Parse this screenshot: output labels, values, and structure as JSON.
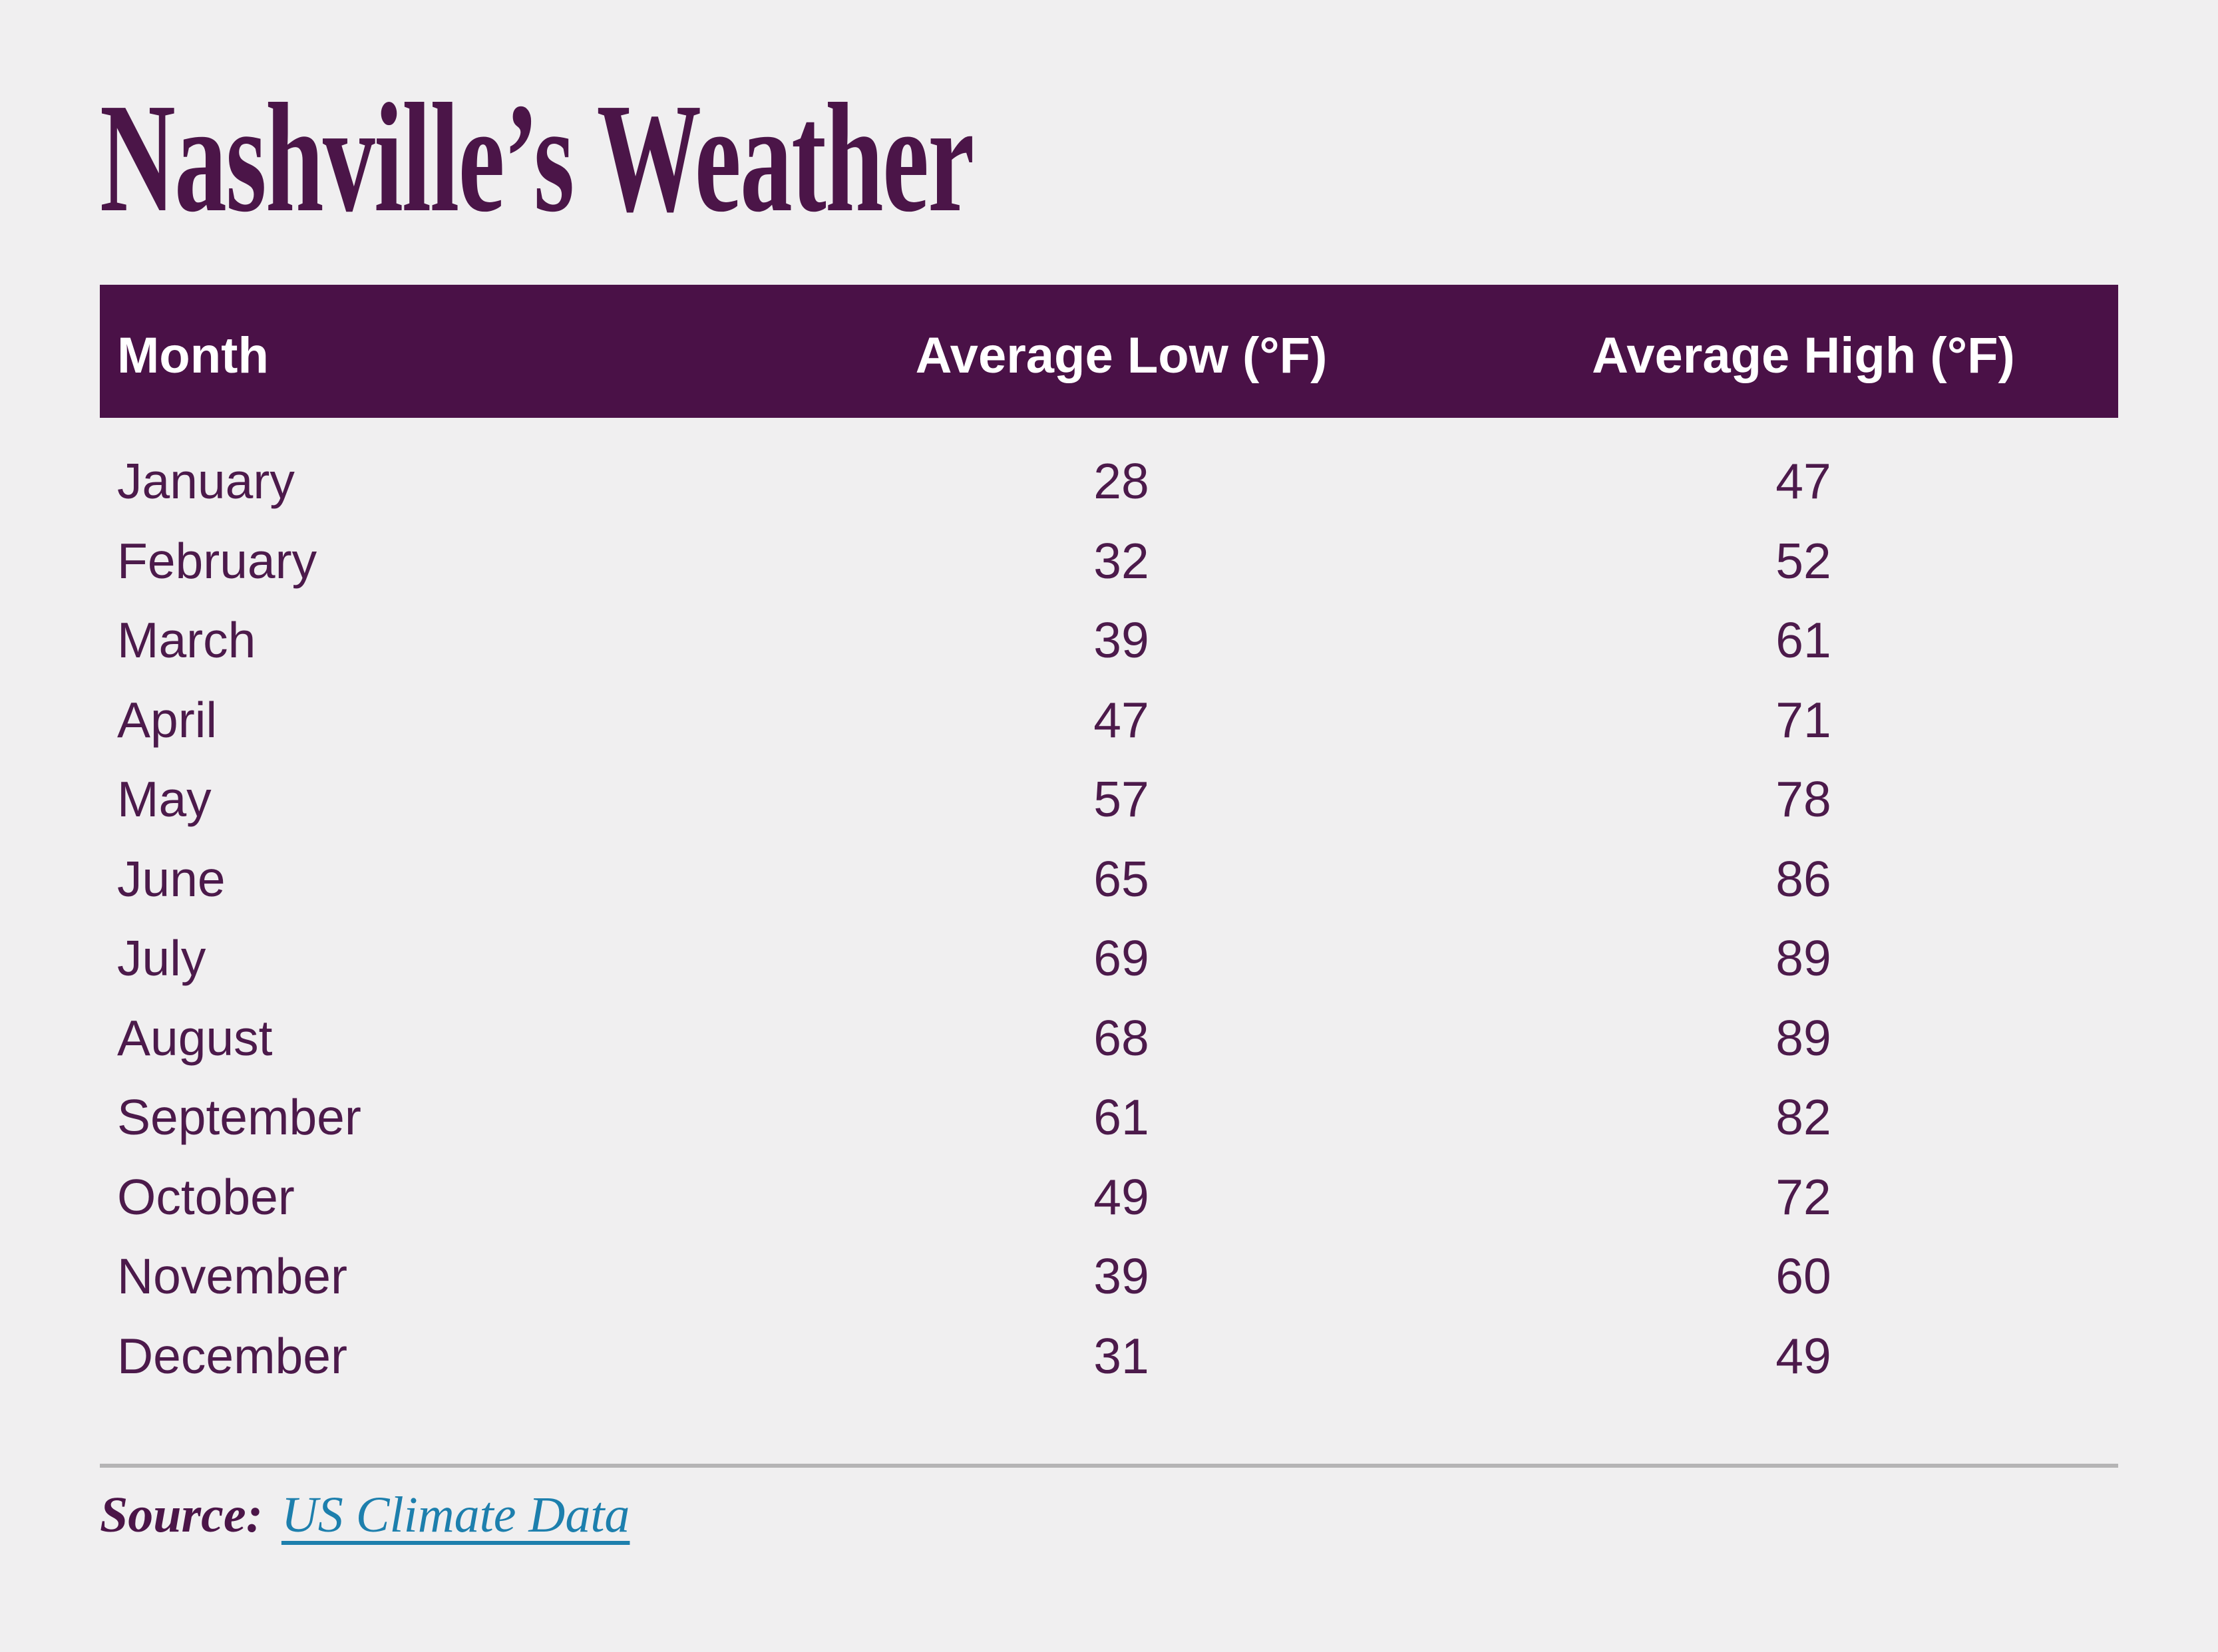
{
  "title": "Nashville’s Weather",
  "table": {
    "columns": [
      "Month",
      "Average Low (°F)",
      "Average High (°F)"
    ],
    "rows": [
      {
        "month": "January",
        "low": "28",
        "high": "47"
      },
      {
        "month": "February",
        "low": "32",
        "high": "52"
      },
      {
        "month": "March",
        "low": "39",
        "high": "61"
      },
      {
        "month": "April",
        "low": "47",
        "high": "71"
      },
      {
        "month": "May",
        "low": "57",
        "high": "78"
      },
      {
        "month": "June",
        "low": "65",
        "high": "86"
      },
      {
        "month": "July",
        "low": "69",
        "high": "89"
      },
      {
        "month": "August",
        "low": "68",
        "high": "89"
      },
      {
        "month": "September",
        "low": "61",
        "high": "82"
      },
      {
        "month": "October",
        "low": "49",
        "high": "72"
      },
      {
        "month": "November",
        "low": "39",
        "high": "60"
      },
      {
        "month": "December",
        "low": "31",
        "high": "49"
      }
    ]
  },
  "source": {
    "label": "Source:",
    "link_text": "US Climate Data"
  },
  "colors": {
    "background": "#f0eff0",
    "accent_plum": "#4a1147",
    "text_plum": "#4b1548",
    "header_text": "#ffffff",
    "link_teal": "#1d7fad",
    "divider_gray": "#b5b4b5"
  },
  "chart_data": {
    "type": "table",
    "title": "Nashville’s Weather",
    "categories": [
      "January",
      "February",
      "March",
      "April",
      "May",
      "June",
      "July",
      "August",
      "September",
      "October",
      "November",
      "December"
    ],
    "series": [
      {
        "name": "Average Low (°F)",
        "values": [
          28,
          32,
          39,
          47,
          57,
          65,
          69,
          68,
          61,
          49,
          39,
          31
        ]
      },
      {
        "name": "Average High (°F)",
        "values": [
          47,
          52,
          61,
          71,
          78,
          86,
          89,
          89,
          82,
          72,
          60,
          49
        ]
      }
    ],
    "source": "US Climate Data"
  }
}
